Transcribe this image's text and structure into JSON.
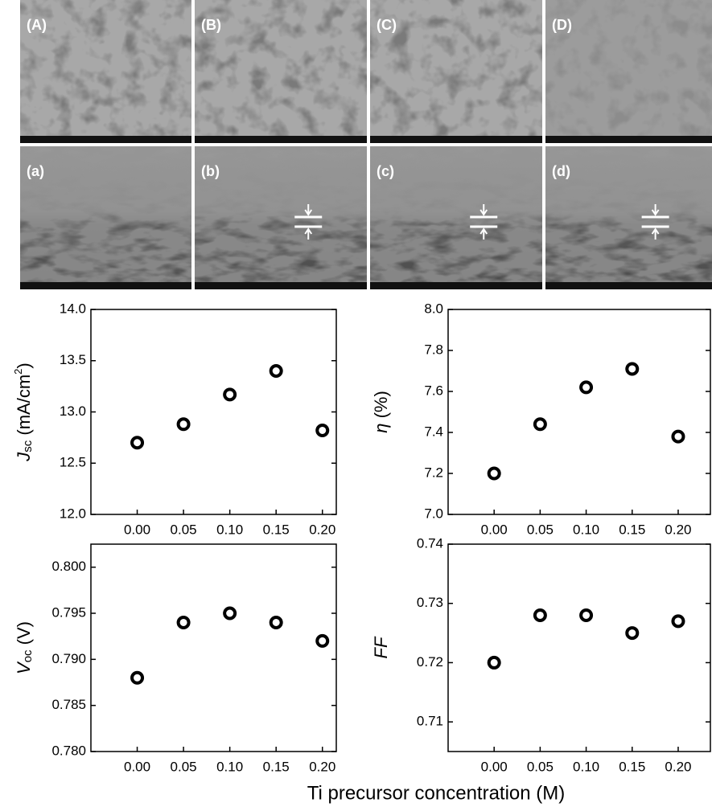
{
  "panels": {
    "top": [
      "(A)",
      "(B)",
      "(C)",
      "(D)"
    ],
    "bottom": [
      "(a)",
      "(b)",
      "(c)",
      "(d)"
    ]
  },
  "xlabel": "Ti precursor concentration (M)",
  "chart_data": [
    {
      "type": "scatter",
      "ylabel": [
        {
          "text": "J",
          "style": "italic"
        },
        {
          "text": "sc",
          "style": "sub"
        },
        {
          "text": " (mA/cm",
          "style": "normal"
        },
        {
          "text": "2",
          "style": "sup"
        },
        {
          "text": ")",
          "style": "normal"
        }
      ],
      "x": [
        0,
        0.05,
        0.1,
        0.15,
        0.2
      ],
      "values": [
        12.7,
        12.88,
        13.17,
        13.4,
        12.82
      ],
      "color": "#000000",
      "xlim": [
        -0.05,
        0.215
      ],
      "xticks": [
        {
          "value": 0,
          "label": "0.00"
        },
        {
          "value": 0.05,
          "label": "0.05"
        },
        {
          "value": 0.1,
          "label": "0.10"
        },
        {
          "value": 0.15,
          "label": "0.15"
        },
        {
          "value": 0.2,
          "label": "0.20"
        }
      ],
      "ylim": [
        12,
        14
      ],
      "yticks": [
        {
          "value": 12,
          "label": "12.0"
        },
        {
          "value": 12.5,
          "label": "12.5"
        },
        {
          "value": 13,
          "label": "13.0"
        },
        {
          "value": 13.5,
          "label": "13.5"
        },
        {
          "value": 14,
          "label": "14.0"
        }
      ]
    },
    {
      "type": "scatter",
      "ylabel": [
        {
          "text": "η",
          "style": "italic"
        },
        {
          "text": " (%)",
          "style": "normal"
        }
      ],
      "x": [
        0,
        0.05,
        0.1,
        0.15,
        0.2
      ],
      "values": [
        7.2,
        7.44,
        7.62,
        7.71,
        7.38
      ],
      "color": "#000000",
      "xlim": [
        -0.05,
        0.235
      ],
      "xticks": [
        {
          "value": 0,
          "label": "0.00"
        },
        {
          "value": 0.05,
          "label": "0.05"
        },
        {
          "value": 0.1,
          "label": "0.10"
        },
        {
          "value": 0.15,
          "label": "0.15"
        },
        {
          "value": 0.2,
          "label": "0.20"
        }
      ],
      "ylim": [
        7,
        8
      ],
      "yticks": [
        {
          "value": 7,
          "label": "7.0"
        },
        7.2,
        7.4,
        7.6,
        7.8,
        {
          "value": 8,
          "label": "8.0"
        }
      ]
    },
    {
      "type": "scatter",
      "ylabel": [
        {
          "text": "V",
          "style": "italic"
        },
        {
          "text": "oc",
          "style": "sub"
        },
        {
          "text": " (V)",
          "style": "normal"
        }
      ],
      "x": [
        0,
        0.05,
        0.1,
        0.15,
        0.2
      ],
      "values": [
        0.788,
        0.794,
        0.795,
        0.794,
        0.792
      ],
      "color": "#000000",
      "xlim": [
        -0.05,
        0.215
      ],
      "xticks": [
        {
          "value": 0,
          "label": "0.00"
        },
        {
          "value": 0.05,
          "label": "0.05"
        },
        {
          "value": 0.1,
          "label": "0.10"
        },
        {
          "value": 0.15,
          "label": "0.15"
        },
        {
          "value": 0.2,
          "label": "0.20"
        }
      ],
      "ylim": [
        0.78,
        0.8025
      ],
      "yticks": [
        {
          "value": 0.78,
          "label": "0.780"
        },
        0.785,
        {
          "value": 0.79,
          "label": "0.790"
        },
        0.795,
        {
          "value": 0.8,
          "label": "0.800"
        }
      ]
    },
    {
      "type": "scatter",
      "ylabel": [
        {
          "text": "FF",
          "style": "italic"
        }
      ],
      "x": [
        0,
        0.05,
        0.1,
        0.15,
        0.2
      ],
      "values": [
        0.72,
        0.728,
        0.728,
        0.725,
        0.727
      ],
      "color": "#000000",
      "xlim": [
        -0.05,
        0.235
      ],
      "xticks": [
        {
          "value": 0,
          "label": "0.00"
        },
        {
          "value": 0.05,
          "label": "0.05"
        },
        {
          "value": 0.1,
          "label": "0.10"
        },
        {
          "value": 0.15,
          "label": "0.15"
        },
        {
          "value": 0.2,
          "label": "0.20"
        }
      ],
      "ylim": [
        0.705,
        0.74
      ],
      "yticks": [
        0.71,
        0.72,
        0.73,
        0.74
      ]
    }
  ]
}
